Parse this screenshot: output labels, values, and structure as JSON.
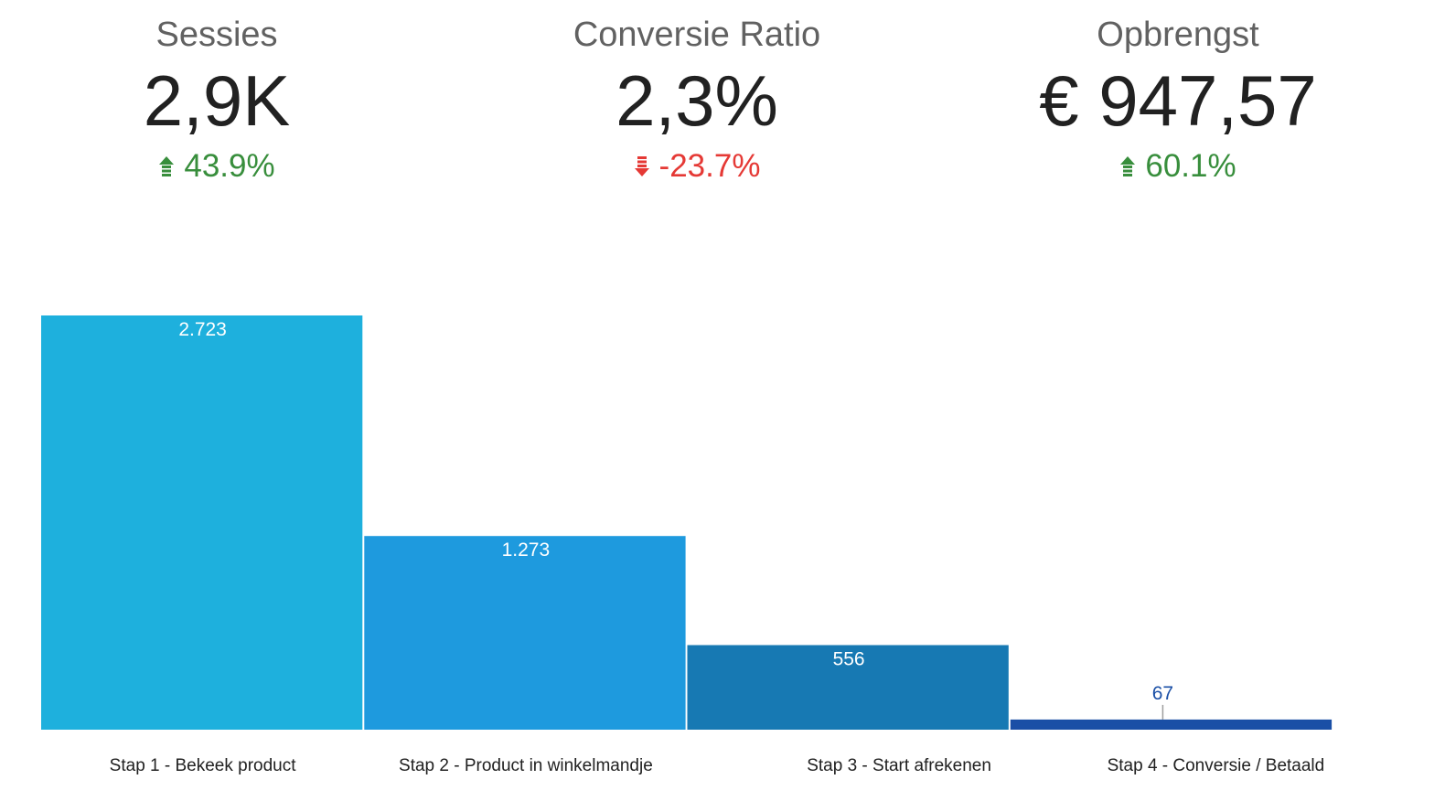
{
  "kpis": [
    {
      "label": "Sessies",
      "value": "2,9K",
      "delta": "43.9%",
      "direction": "up",
      "color": "#388e3c"
    },
    {
      "label": "Conversie Ratio",
      "value": "2,3%",
      "delta": "-23.7%",
      "direction": "down",
      "color": "#e53935"
    },
    {
      "label": "Opbrengst",
      "value": "€ 947,57",
      "delta": "60.1%",
      "direction": "up",
      "color": "#388e3c"
    }
  ],
  "chart_data": {
    "type": "bar",
    "title": "",
    "xlabel": "",
    "ylabel": "",
    "ylim": [
      0,
      2723
    ],
    "grid": false,
    "legend": "none",
    "categories": [
      "Stap 1 - Bekeek product",
      "Stap 2 - Product in winkelmandje",
      "Stap 3 - Start afrekenen",
      "Stap 4 - Conversie / Betaald"
    ],
    "values": [
      2723,
      1273,
      556,
      67
    ],
    "value_labels": [
      "2.723",
      "1.273",
      "556",
      "67"
    ],
    "colors": [
      "#1eb0dd",
      "#1e9ade",
      "#1779b3",
      "#1a4fa6"
    ]
  }
}
